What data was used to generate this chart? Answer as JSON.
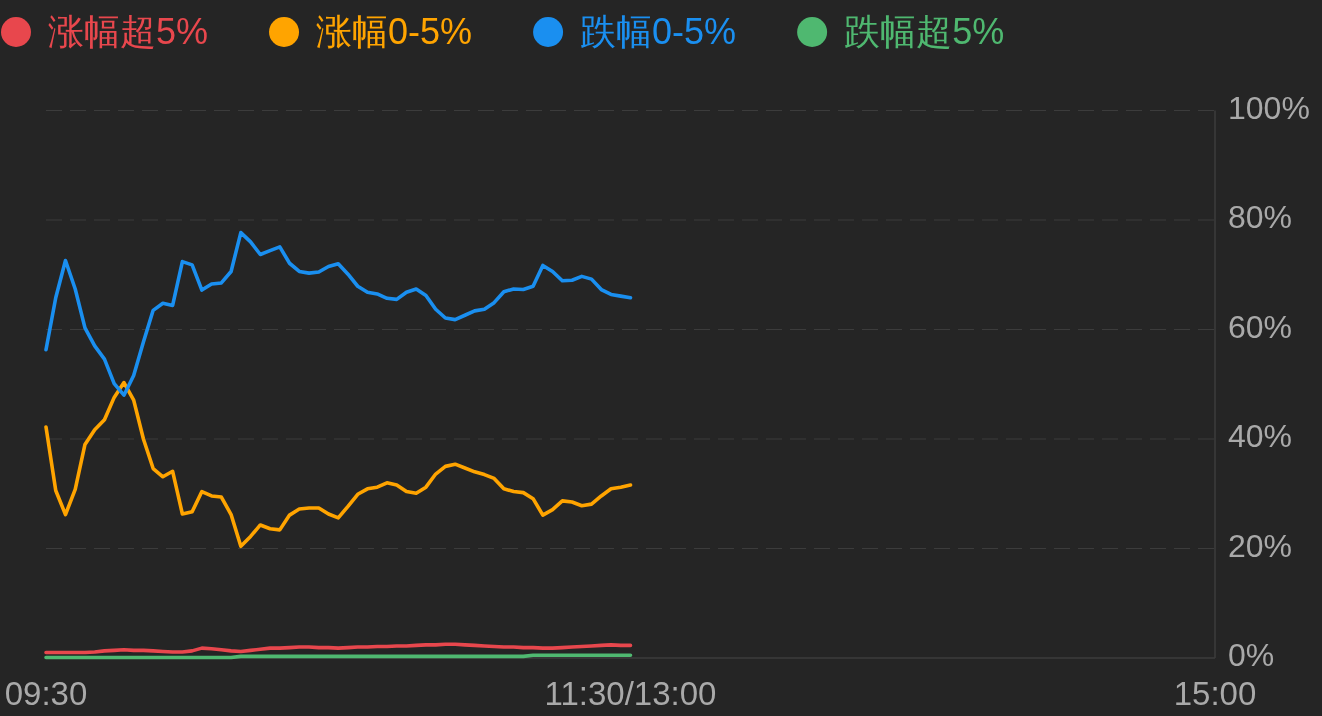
{
  "chart_data": {
    "type": "line",
    "legend": "top",
    "grid": "y",
    "marker": "none",
    "line_style": "solid",
    "categories": [
      "09:30",
      null,
      null,
      null,
      null,
      null,
      null,
      null,
      null,
      null,
      null,
      null,
      null,
      null,
      null,
      null,
      null,
      null,
      null,
      null,
      null,
      null,
      null,
      null,
      null,
      null,
      null,
      null,
      null,
      null,
      null,
      null,
      null,
      null,
      null,
      null,
      null,
      null,
      null,
      null,
      null,
      null,
      null,
      null,
      null,
      null,
      null,
      null,
      null,
      null,
      null,
      null,
      null,
      null,
      null,
      null,
      null,
      null,
      null,
      null,
      "11:30/13:00",
      null,
      null,
      null,
      null,
      null,
      null,
      null,
      null,
      null,
      null,
      null,
      null,
      null,
      null,
      null,
      null,
      null,
      null,
      null,
      null,
      null,
      null,
      null,
      null,
      null,
      null,
      null,
      null,
      null,
      null,
      null,
      null,
      null,
      null,
      null,
      null,
      null,
      null,
      null,
      null,
      null,
      null,
      null,
      null,
      null,
      null,
      null,
      null,
      null,
      null,
      null,
      null,
      null,
      null,
      null,
      null,
      null,
      null,
      null,
      "15:00"
    ],
    "ylim": [
      0,
      100
    ],
    "yticks": [
      {
        "value": 0,
        "label": "0%"
      },
      {
        "value": 20,
        "label": "20%"
      },
      {
        "value": 40,
        "label": "40%"
      },
      {
        "value": 60,
        "label": "60%"
      },
      {
        "value": 80,
        "label": "80%"
      },
      {
        "value": 100,
        "label": "100%"
      }
    ],
    "series": [
      {
        "name": "涨幅超5%",
        "color": "#e8474d",
        "values": [
          1.0,
          1.0,
          1.0,
          1.0,
          1.0,
          1.1,
          1.3,
          1.4,
          1.5,
          1.4,
          1.4,
          1.3,
          1.2,
          1.1,
          1.1,
          1.3,
          1.8,
          1.7,
          1.5,
          1.3,
          1.2,
          1.4,
          1.6,
          1.8,
          1.8,
          1.9,
          2.0,
          2.0,
          1.9,
          1.9,
          1.8,
          1.9,
          2.0,
          2.0,
          2.1,
          2.1,
          2.2,
          2.2,
          2.3,
          2.4,
          2.4,
          2.5,
          2.5,
          2.4,
          2.3,
          2.2,
          2.1,
          2.0,
          2.0,
          1.9,
          1.9,
          1.8,
          1.8,
          1.9,
          2.0,
          2.1,
          2.2,
          2.3,
          2.4,
          2.3,
          2.3,
          null,
          null,
          null,
          null,
          null,
          null,
          null,
          null,
          null,
          null,
          null,
          null,
          null,
          null,
          null,
          null,
          null,
          null,
          null,
          null,
          null,
          null,
          null,
          null,
          null,
          null,
          null,
          null,
          null,
          null,
          null,
          null,
          null,
          null,
          null,
          null,
          null,
          null,
          null,
          null,
          null,
          null,
          null,
          null,
          null,
          null,
          null,
          null,
          null,
          null,
          null,
          null,
          null,
          null,
          null,
          null,
          null,
          null,
          null,
          null
        ]
      },
      {
        "name": "涨幅0-5%",
        "color": "#ffa400",
        "values": [
          42.2,
          30.6,
          26.2,
          30.8,
          39.0,
          41.7,
          43.5,
          47.6,
          50.3,
          47.1,
          40.0,
          34.6,
          33.1,
          34.1,
          26.3,
          26.7,
          30.4,
          29.6,
          29.4,
          26.2,
          20.4,
          22.2,
          24.3,
          23.6,
          23.4,
          26.1,
          27.2,
          27.4,
          27.4,
          26.3,
          25.6,
          27.7,
          29.9,
          30.9,
          31.2,
          32.0,
          31.6,
          30.4,
          30.1,
          31.2,
          33.6,
          35.0,
          35.4,
          34.7,
          34.0,
          33.5,
          32.8,
          30.9,
          30.4,
          30.2,
          29.1,
          26.1,
          27.1,
          28.7,
          28.5,
          27.8,
          28.1,
          29.6,
          30.9,
          31.2,
          31.6,
          null,
          null,
          null,
          null,
          null,
          null,
          null,
          null,
          null,
          null,
          null,
          null,
          null,
          null,
          null,
          null,
          null,
          null,
          null,
          null,
          null,
          null,
          null,
          null,
          null,
          null,
          null,
          null,
          null,
          null,
          null,
          null,
          null,
          null,
          null,
          null,
          null,
          null,
          null,
          null,
          null,
          null,
          null,
          null,
          null,
          null,
          null,
          null,
          null,
          null,
          null,
          null,
          null,
          null,
          null,
          null,
          null,
          null,
          null,
          null
        ]
      },
      {
        "name": "跌幅0-5%",
        "color": "#1a8ff0",
        "values": [
          56.3,
          65.8,
          72.6,
          67.4,
          60.3,
          57.0,
          54.6,
          50.1,
          48.0,
          51.6,
          57.7,
          63.5,
          64.8,
          64.4,
          72.4,
          71.8,
          67.2,
          68.3,
          68.5,
          70.6,
          77.7,
          76.0,
          73.7,
          74.4,
          75.1,
          72.1,
          70.6,
          70.3,
          70.5,
          71.5,
          72.0,
          70.1,
          67.9,
          66.8,
          66.5,
          65.7,
          65.5,
          66.8,
          67.4,
          66.2,
          63.7,
          62.1,
          61.8,
          62.6,
          63.4,
          63.7,
          64.9,
          66.9,
          67.4,
          67.3,
          67.9,
          71.7,
          70.6,
          68.9,
          69.0,
          69.7,
          69.2,
          67.3,
          66.4,
          66.1,
          65.8,
          null,
          null,
          null,
          null,
          null,
          null,
          null,
          null,
          null,
          null,
          null,
          null,
          null,
          null,
          null,
          null,
          null,
          null,
          null,
          null,
          null,
          null,
          null,
          null,
          null,
          null,
          null,
          null,
          null,
          null,
          null,
          null,
          null,
          null,
          null,
          null,
          null,
          null,
          null,
          null,
          null,
          null,
          null,
          null,
          null,
          null,
          null,
          null,
          null,
          null,
          null,
          null,
          null,
          null,
          null,
          null,
          null,
          null,
          null,
          null
        ]
      },
      {
        "name": "跌幅超5%",
        "color": "#4fb870",
        "values": [
          0.1,
          0.1,
          0.1,
          0.1,
          0.1,
          0.1,
          0.1,
          0.1,
          0.1,
          0.1,
          0.1,
          0.1,
          0.1,
          0.1,
          0.1,
          0.1,
          0.1,
          0.1,
          0.1,
          0.1,
          0.3,
          0.3,
          0.3,
          0.3,
          0.3,
          0.3,
          0.3,
          0.3,
          0.3,
          0.3,
          0.3,
          0.3,
          0.3,
          0.3,
          0.3,
          0.3,
          0.3,
          0.3,
          0.3,
          0.3,
          0.3,
          0.3,
          0.3,
          0.3,
          0.3,
          0.3,
          0.3,
          0.3,
          0.3,
          0.3,
          0.5,
          0.5,
          0.5,
          0.5,
          0.5,
          0.5,
          0.5,
          0.5,
          0.5,
          0.5,
          0.5,
          null,
          null,
          null,
          null,
          null,
          null,
          null,
          null,
          null,
          null,
          null,
          null,
          null,
          null,
          null,
          null,
          null,
          null,
          null,
          null,
          null,
          null,
          null,
          null,
          null,
          null,
          null,
          null,
          null,
          null,
          null,
          null,
          null,
          null,
          null,
          null,
          null,
          null,
          null,
          null,
          null,
          null,
          null,
          null,
          null,
          null,
          null,
          null,
          null,
          null,
          null,
          null,
          null,
          null,
          null,
          null,
          null,
          null,
          null,
          null
        ]
      }
    ]
  }
}
